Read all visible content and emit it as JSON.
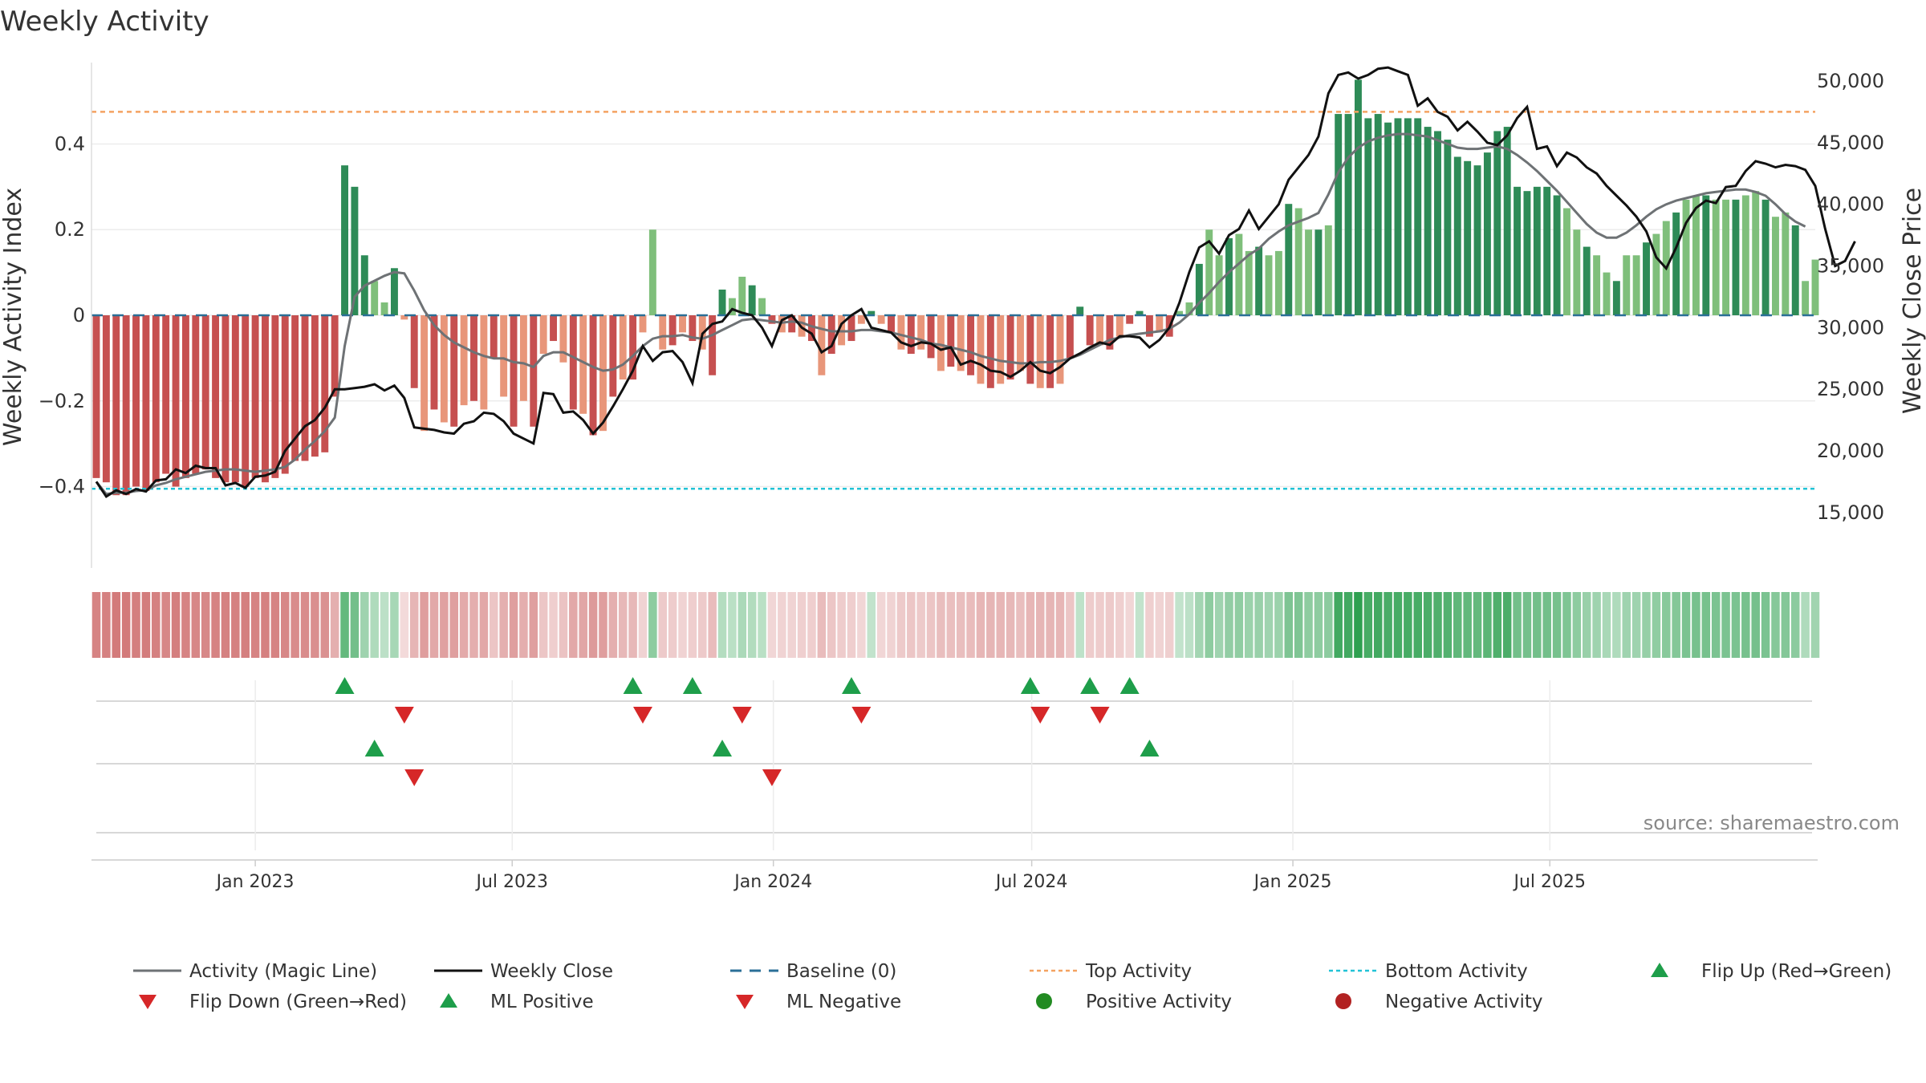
{
  "title": "Weekly Activity",
  "source": "source: sharemaestro.com",
  "colors": {
    "pos_strong": "#2e8b57",
    "pos_light": "#7fbf7b",
    "neg_strong": "#c65050",
    "neg_light": "#e8967a",
    "magic_line": "#6e7275",
    "close_line": "#111111",
    "baseline": "#2a6f97",
    "top_line": "#f4a261",
    "bottom_line": "#22c3d6",
    "marker_up": "#1e9e4a",
    "marker_down": "#d62728",
    "legend_pos_dot": "#228b22",
    "legend_neg_dot": "#b22222"
  },
  "chart_data": {
    "type": "bar",
    "title": "Weekly Activity",
    "y_left_label": "Weekly Activity Index",
    "y_right_label": "Weekly Close Price",
    "y_left_ticks": [
      "0.4",
      "0.2",
      "0",
      "−0.2",
      "−0.4"
    ],
    "y_left_tick_values": [
      0.4,
      0.2,
      0,
      -0.2,
      -0.4
    ],
    "y_left_range": [
      -0.59,
      0.59
    ],
    "y_right_ticks": [
      "50,000",
      "45,000",
      "40,000",
      "35,000",
      "30,000",
      "25,000",
      "20,000",
      "15,000"
    ],
    "y_right_tick_values": [
      50000,
      45000,
      40000,
      35000,
      30000,
      25000,
      20000,
      15000
    ],
    "y_right_range": [
      10500,
      51500
    ],
    "x_start": "2022-09-11",
    "x_ticks": [
      "Jan 2023",
      "Jul 2023",
      "Jan 2024",
      "Jul 2024",
      "Jan 2025",
      "Jul 2025"
    ],
    "x_tick_dates": [
      "2023-01-01",
      "2023-07-01",
      "2024-01-01",
      "2024-07-01",
      "2025-01-01",
      "2025-07-01"
    ],
    "top_activity": 0.475,
    "bottom_activity": -0.405,
    "activity": [
      -0.38,
      -0.39,
      -0.42,
      -0.42,
      -0.4,
      -0.41,
      -0.39,
      -0.37,
      -0.4,
      -0.38,
      -0.37,
      -0.36,
      -0.38,
      -0.39,
      -0.39,
      -0.4,
      -0.38,
      -0.39,
      -0.38,
      -0.37,
      -0.34,
      -0.34,
      -0.33,
      -0.32,
      -0.19,
      0.35,
      0.3,
      0.14,
      0.08,
      0.03,
      0.11,
      -0.01,
      -0.17,
      -0.27,
      -0.22,
      -0.25,
      -0.26,
      -0.21,
      -0.2,
      -0.22,
      -0.1,
      -0.19,
      -0.26,
      -0.2,
      -0.26,
      -0.09,
      -0.06,
      -0.11,
      -0.22,
      -0.23,
      -0.28,
      -0.27,
      -0.19,
      -0.15,
      -0.15,
      -0.04,
      0.2,
      -0.08,
      -0.07,
      -0.04,
      -0.06,
      -0.08,
      -0.14,
      0.06,
      0.04,
      0.09,
      0.07,
      0.04,
      -0.02,
      -0.04,
      -0.04,
      -0.05,
      -0.06,
      -0.14,
      -0.09,
      -0.07,
      -0.06,
      -0.02,
      0.01,
      -0.02,
      -0.04,
      -0.08,
      -0.09,
      -0.08,
      -0.1,
      -0.13,
      -0.12,
      -0.13,
      -0.14,
      -0.16,
      -0.17,
      -0.16,
      -0.15,
      -0.13,
      -0.16,
      -0.17,
      -0.17,
      -0.16,
      -0.1,
      0.02,
      -0.07,
      -0.07,
      -0.08,
      -0.05,
      -0.02,
      0.01,
      -0.05,
      -0.04,
      -0.05,
      0.01,
      0.03,
      0.12,
      0.2,
      0.14,
      0.18,
      0.19,
      0.15,
      0.16,
      0.14,
      0.15,
      0.26,
      0.25,
      0.2,
      0.2,
      0.21,
      0.47,
      0.47,
      0.55,
      0.46,
      0.47,
      0.45,
      0.46,
      0.46,
      0.46,
      0.44,
      0.43,
      0.41,
      0.37,
      0.36,
      0.35,
      0.38,
      0.43,
      0.44,
      0.3,
      0.29,
      0.3,
      0.3,
      0.28,
      0.25,
      0.2,
      0.16,
      0.14,
      0.1,
      0.08,
      0.14,
      0.14,
      0.17,
      0.19,
      0.22,
      0.24,
      0.27,
      0.28,
      0.28,
      0.27,
      0.27,
      0.27,
      0.28,
      0.29,
      0.27,
      0.23,
      0.24,
      0.21,
      0.08,
      0.13
    ],
    "activity_line": [
      -0.38,
      -0.4,
      -0.41,
      -0.41,
      -0.4,
      -0.4,
      -0.39,
      -0.38,
      -0.37,
      -0.36,
      -0.36,
      -0.35,
      -0.36,
      -0.36,
      -0.37,
      -0.37,
      -0.37,
      -0.37,
      -0.37,
      -0.37,
      -0.37,
      -0.37,
      -0.35,
      -0.34,
      -0.32,
      -0.14,
      -0.03,
      0.0,
      0.01,
      0.02,
      0.03,
      0.02,
      -0.05,
      -0.1,
      -0.13,
      -0.15,
      -0.17,
      -0.18,
      -0.19,
      -0.19,
      -0.19,
      -0.19,
      -0.2,
      -0.2,
      -0.21,
      -0.18,
      -0.16,
      -0.15,
      -0.17,
      -0.19,
      -0.21,
      -0.22,
      -0.21,
      -0.19,
      -0.17,
      -0.13,
      -0.08,
      -0.08,
      -0.07,
      -0.07,
      -0.07,
      -0.08,
      -0.1,
      -0.07,
      -0.05,
      -0.03,
      -0.02,
      -0.02,
      -0.02,
      -0.03,
      -0.03,
      -0.04,
      -0.05,
      -0.07,
      -0.07,
      -0.07,
      -0.06,
      -0.05,
      -0.04,
      -0.04,
      -0.04,
      -0.06,
      -0.07,
      -0.08,
      -0.08,
      -0.09,
      -0.1,
      -0.11,
      -0.12,
      -0.13,
      -0.14,
      -0.14,
      -0.15,
      -0.15,
      -0.15,
      -0.15,
      -0.14,
      -0.13,
      -0.11,
      -0.1,
      -0.1,
      -0.09,
      -0.09,
      -0.08,
      -0.07,
      -0.06,
      -0.05,
      -0.05,
      -0.05,
      -0.04,
      -0.03,
      -0.01,
      0.02,
      0.04,
      0.07,
      0.09,
      0.1,
      0.11,
      0.12,
      0.13,
      0.15,
      0.17,
      0.18,
      0.19,
      0.2,
      0.27,
      0.34,
      0.38,
      0.4,
      0.41,
      0.42,
      0.42,
      0.43,
      0.43,
      0.42,
      0.42,
      0.41,
      0.4,
      0.39,
      0.38,
      0.38,
      0.39,
      0.4,
      0.38,
      0.36,
      0.34,
      0.32,
      0.3,
      0.28,
      0.25,
      0.22,
      0.19,
      0.16,
      0.13,
      0.13,
      0.14,
      0.16,
      0.18,
      0.2,
      0.22,
      0.24,
      0.25,
      0.26,
      0.26,
      0.26,
      0.27,
      0.27,
      0.27,
      0.26,
      0.25,
      0.24,
      0.22,
      0.19,
      0.18
    ],
    "weekly_close": [
      17500,
      16300,
      16800,
      16500,
      16900,
      16700,
      17600,
      17700,
      18500,
      18200,
      18800,
      18600,
      18600,
      17200,
      17400,
      17000,
      17900,
      18000,
      18300,
      20000,
      21000,
      22000,
      22500,
      23500,
      25000,
      25000,
      25100,
      25200,
      25400,
      24900,
      25300,
      24300,
      21900,
      21800,
      21700,
      21500,
      21400,
      22200,
      22400,
      23100,
      23000,
      22400,
      21400,
      21000,
      20600,
      24700,
      24600,
      23100,
      23200,
      22500,
      21400,
      22300,
      23600,
      25000,
      26500,
      28500,
      27300,
      28000,
      28100,
      27200,
      25500,
      29500,
      30300,
      30500,
      31500,
      31200,
      31000,
      30000,
      28500,
      30600,
      31000,
      30000,
      29500,
      28000,
      28500,
      30300,
      31000,
      31500,
      30000,
      29800,
      29600,
      28800,
      28500,
      28800,
      28700,
      28200,
      28400,
      27000,
      27300,
      27000,
      26500,
      26400,
      26000,
      26500,
      27200,
      26500,
      26300,
      26800,
      27500,
      27900,
      28400,
      28800,
      28600,
      29300,
      29300,
      29200,
      28400,
      29000,
      30000,
      32000,
      34500,
      36500,
      37000,
      36000,
      37500,
      38000,
      39500,
      38000,
      39000,
      40000,
      42000,
      43000,
      44000,
      45500,
      49000,
      50500,
      50700,
      50200,
      50500,
      51000,
      51100,
      50800,
      50500,
      48000,
      48600,
      47500,
      47100,
      46000,
      46700,
      45900,
      45000,
      44800,
      45600,
      47000,
      47900,
      44500,
      44700,
      43100,
      44200,
      43800,
      43000,
      42500,
      41500,
      40700,
      39900,
      39000,
      37800,
      35700,
      34800,
      36500,
      38500,
      39700,
      40300,
      40100,
      41400,
      41500,
      42700,
      43500,
      43300,
      43000,
      43200,
      43100,
      42800,
      41500,
      38000,
      35000,
      35400,
      37000
    ],
    "magic_line": [
      17500,
      16500,
      16600,
      16600,
      16750,
      16800,
      17200,
      17400,
      17700,
      17900,
      18100,
      18300,
      18400,
      18500,
      18500,
      18400,
      18300,
      18400,
      18500,
      18700,
      19300,
      20100,
      20800,
      21600,
      22700,
      28500,
      32500,
      33400,
      33800,
      34200,
      34500,
      34400,
      33000,
      31400,
      30200,
      29400,
      28800,
      28400,
      28000,
      27700,
      27500,
      27500,
      27200,
      27100,
      26800,
      27700,
      28000,
      28000,
      27600,
      27200,
      26800,
      26500,
      26600,
      27000,
      27700,
      28500,
      29100,
      29300,
      29300,
      29400,
      29200,
      29100,
      29400,
      29800,
      30200,
      30600,
      30700,
      30600,
      30500,
      30400,
      30500,
      30400,
      30100,
      29900,
      29700,
      29700,
      29700,
      29800,
      29800,
      29700,
      29600,
      29400,
      29200,
      29000,
      28700,
      28600,
      28400,
      28200,
      28000,
      27700,
      27500,
      27300,
      27200,
      27100,
      27100,
      27200,
      27200,
      27300,
      27500,
      27800,
      28200,
      28600,
      29000,
      29200,
      29400,
      29500,
      29600,
      29700,
      29900,
      30400,
      31100,
      32000,
      32800,
      33700,
      34500,
      35200,
      35900,
      36400,
      37200,
      37800,
      38300,
      38600,
      38900,
      39300,
      40800,
      42600,
      43800,
      44600,
      45100,
      45400,
      45600,
      45700,
      45700,
      45600,
      45500,
      45200,
      44900,
      44600,
      44500,
      44500,
      44600,
      44700,
      44500,
      44000,
      43400,
      42700,
      41900,
      41100,
      40200,
      39300,
      38400,
      37700,
      37300,
      37300,
      37700,
      38300,
      39000,
      39600,
      40000,
      40300,
      40500,
      40700,
      40900,
      41000,
      41100,
      41200,
      41200,
      41000,
      40700,
      40000,
      39200,
      38600,
      38200
    ],
    "strip_rows": [
      {
        "up_weeks": [
          25,
          54,
          60,
          76,
          94,
          100,
          104
        ],
        "down_weeks": [
          31,
          55,
          65,
          77,
          95,
          101
        ]
      },
      {
        "up_weeks": [
          28,
          63,
          106
        ],
        "down_weeks": [
          32,
          68
        ]
      },
      {
        "up_weeks": [],
        "down_weeks": []
      }
    ]
  },
  "legend": [
    {
      "key": "magic",
      "label": "Activity (Magic Line)"
    },
    {
      "key": "close",
      "label": "Weekly Close"
    },
    {
      "key": "baseline",
      "label": "Baseline (0)"
    },
    {
      "key": "top",
      "label": "Top Activity"
    },
    {
      "key": "bottom",
      "label": "Bottom Activity"
    },
    {
      "key": "flipup",
      "label": "Flip Up (Red→Green)"
    },
    {
      "key": "flipdown",
      "label": "Flip Down (Green→Red)"
    },
    {
      "key": "mlpos",
      "label": "ML Positive"
    },
    {
      "key": "mlneg",
      "label": "ML Negative"
    },
    {
      "key": "posact",
      "label": "Positive Activity"
    },
    {
      "key": "negact",
      "label": "Negative Activity"
    }
  ]
}
